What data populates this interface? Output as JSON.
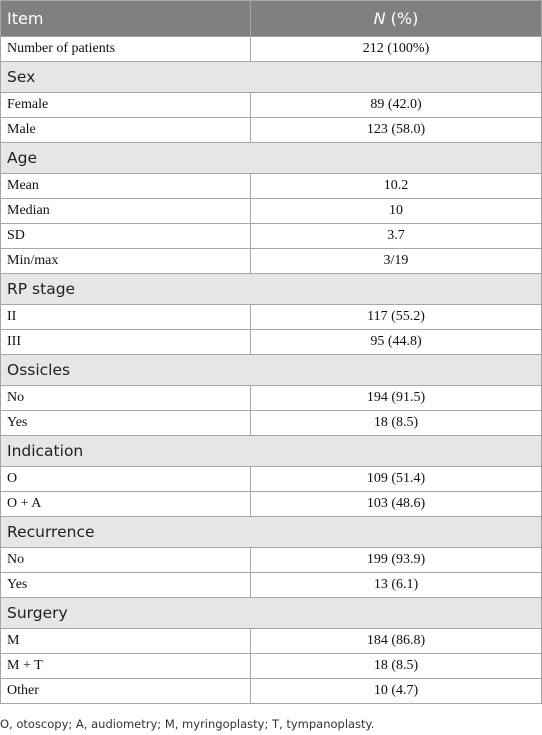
{
  "table": {
    "header": {
      "item": "Item",
      "n_symbol": "N",
      "n_unit": "(%)"
    },
    "first_row": [
      "Number of patients",
      "212 (100%)"
    ],
    "sections": [
      {
        "title": "Sex",
        "rows": [
          [
            "Female",
            "89 (42.0)"
          ],
          [
            "Male",
            "123 (58.0)"
          ]
        ]
      },
      {
        "title": "Age",
        "rows": [
          [
            "Mean",
            "10.2"
          ],
          [
            "Median",
            "10"
          ],
          [
            "SD",
            "3.7"
          ],
          [
            "Min/max",
            "3/19"
          ]
        ]
      },
      {
        "title": "RP stage",
        "rows": [
          [
            "II",
            "117 (55.2)"
          ],
          [
            "III",
            "95 (44.8)"
          ]
        ]
      },
      {
        "title": "Ossicles",
        "rows": [
          [
            "No",
            "194 (91.5)"
          ],
          [
            "Yes",
            "18 (8.5)"
          ]
        ]
      },
      {
        "title": "Indication",
        "rows": [
          [
            "O",
            "109 (51.4)"
          ],
          [
            "O + A",
            "103 (48.6)"
          ]
        ]
      },
      {
        "title": "Recurrence",
        "rows": [
          [
            "No",
            "199 (93.9)"
          ],
          [
            "Yes",
            "13 (6.1)"
          ]
        ]
      },
      {
        "title": "Surgery",
        "rows": [
          [
            "M",
            "184 (86.8)"
          ],
          [
            "M + T",
            "18 (8.5)"
          ],
          [
            "Other",
            "10 (4.7)"
          ]
        ]
      }
    ]
  },
  "footnote": "O, otoscopy; A, audiometry; M, myringoplasty; T, tympanoplasty."
}
